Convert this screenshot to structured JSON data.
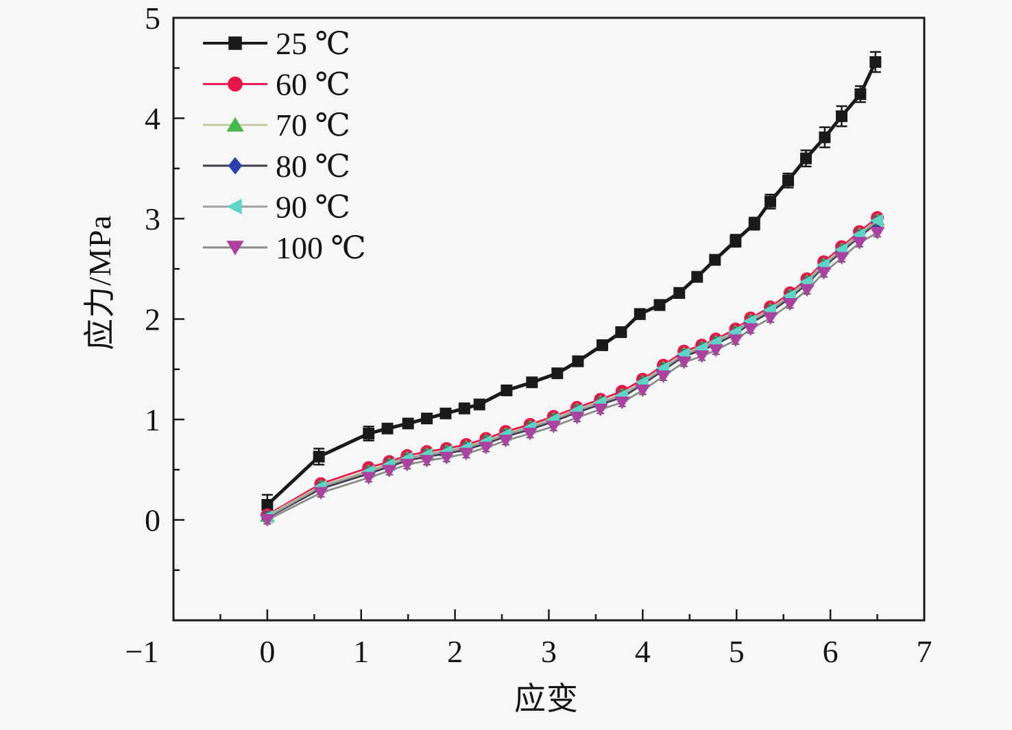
{
  "figure": {
    "background": "#f7f7f7",
    "frame_color": "#1a1a1a",
    "tick_label_color": "#141414"
  },
  "chart_data": {
    "type": "line",
    "title": "",
    "xlabel": "应变",
    "ylabel": "应力/MPa",
    "xlim": [
      -1,
      7
    ],
    "ylim": [
      -1,
      5
    ],
    "x_major_ticks": [
      -1,
      0,
      1,
      2,
      3,
      4,
      5,
      6,
      7
    ],
    "x_minor_step": 0.5,
    "y_major_ticks": [
      0,
      1,
      2,
      3,
      4,
      5
    ],
    "y_minor_step": 0.5,
    "grid": false,
    "legend_position": "top-left",
    "error_bars": true,
    "shared_x": [
      0,
      0.57,
      1.08,
      1.3,
      1.49,
      1.7,
      1.91,
      2.12,
      2.33,
      2.54,
      2.8,
      3.05,
      3.3,
      3.55,
      3.78,
      4.0,
      4.22,
      4.44,
      4.63,
      4.78,
      4.99,
      5.15,
      5.36,
      5.57,
      5.75,
      5.93,
      6.12,
      6.31,
      6.5
    ],
    "series": [
      {
        "name": "25c",
        "label": "25 ℃",
        "marker": "square",
        "marker_color": "#1a1a1a",
        "line_color": "#1a1a1a",
        "err_color": "#1a1a1a",
        "line_width": 5,
        "points": [
          [
            0,
            0.15,
            0.1
          ],
          [
            0.55,
            0.63,
            0.08
          ],
          [
            1.08,
            0.86,
            0.07
          ],
          [
            1.28,
            0.91,
            0.04
          ],
          [
            1.5,
            0.96,
            0.04
          ],
          [
            1.7,
            1.01,
            0.04
          ],
          [
            1.9,
            1.06,
            0.04
          ],
          [
            2.1,
            1.11,
            0.05
          ],
          [
            2.26,
            1.15,
            0.05
          ],
          [
            2.55,
            1.29,
            0.05
          ],
          [
            2.82,
            1.37,
            0.04
          ],
          [
            3.09,
            1.46,
            0.04
          ],
          [
            3.31,
            1.58,
            0.05
          ],
          [
            3.57,
            1.74,
            0.05
          ],
          [
            3.77,
            1.87,
            0.05
          ],
          [
            3.97,
            2.05,
            0.05
          ],
          [
            4.18,
            2.14,
            0.05
          ],
          [
            4.39,
            2.26,
            0.05
          ],
          [
            4.58,
            2.42,
            0.05
          ],
          [
            4.77,
            2.59,
            0.05
          ],
          [
            4.99,
            2.78,
            0.06
          ],
          [
            5.19,
            2.95,
            0.06
          ],
          [
            5.36,
            3.17,
            0.07
          ],
          [
            5.55,
            3.38,
            0.07
          ],
          [
            5.74,
            3.6,
            0.08
          ],
          [
            5.94,
            3.81,
            0.1
          ],
          [
            6.12,
            4.02,
            0.1
          ],
          [
            6.32,
            4.24,
            0.08
          ],
          [
            6.48,
            4.56,
            0.1
          ]
        ]
      },
      {
        "name": "60c",
        "label": "60 ℃",
        "marker": "circle",
        "marker_color": "#e5174a",
        "line_color": "#e8174b",
        "err_color": "#5a5a5a",
        "line_width": 2.8,
        "err": 0.04,
        "values": [
          0.05,
          0.36,
          0.52,
          0.58,
          0.64,
          0.68,
          0.71,
          0.75,
          0.81,
          0.88,
          0.95,
          1.03,
          1.12,
          1.2,
          1.28,
          1.4,
          1.54,
          1.68,
          1.74,
          1.8,
          1.9,
          2.01,
          2.12,
          2.26,
          2.4,
          2.57,
          2.72,
          2.87,
          3.01
        ]
      },
      {
        "name": "70c",
        "label": "70 ℃",
        "marker": "triangle-up",
        "marker_color": "#47b84d",
        "line_color": "#c2cf9b",
        "err_color": "#5a5a5a",
        "line_width": 2.8,
        "err": 0.04,
        "values": [
          0.04,
          0.34,
          0.49,
          0.56,
          0.62,
          0.66,
          0.69,
          0.73,
          0.79,
          0.86,
          0.93,
          1.01,
          1.1,
          1.18,
          1.25,
          1.38,
          1.52,
          1.66,
          1.72,
          1.78,
          1.88,
          1.99,
          2.1,
          2.24,
          2.38,
          2.55,
          2.7,
          2.85,
          2.99
        ]
      },
      {
        "name": "80c",
        "label": "80 ℃",
        "marker": "diamond",
        "marker_color": "#2b3fad",
        "line_color": "#3c3f4e",
        "err_color": "#5a5a5a",
        "line_width": 2.8,
        "err": 0.04,
        "values": [
          0.02,
          0.31,
          0.46,
          0.53,
          0.59,
          0.63,
          0.66,
          0.7,
          0.76,
          0.83,
          0.9,
          0.98,
          1.07,
          1.15,
          1.22,
          1.35,
          1.49,
          1.63,
          1.69,
          1.75,
          1.85,
          1.96,
          2.07,
          2.21,
          2.35,
          2.52,
          2.67,
          2.82,
          2.96
        ]
      },
      {
        "name": "90c",
        "label": "90 ℃",
        "marker": "triangle-left",
        "marker_color": "#5fd3c5",
        "line_color": "#a0a0a0",
        "err_color": "#5a5a5a",
        "line_width": 2.8,
        "err": 0.04,
        "values": [
          0.03,
          0.33,
          0.48,
          0.55,
          0.61,
          0.65,
          0.68,
          0.72,
          0.78,
          0.85,
          0.92,
          1.0,
          1.09,
          1.17,
          1.24,
          1.37,
          1.51,
          1.65,
          1.71,
          1.77,
          1.87,
          1.98,
          2.09,
          2.23,
          2.37,
          2.54,
          2.69,
          2.84,
          2.98
        ]
      },
      {
        "name": "100c",
        "label": "100 ℃",
        "marker": "triangle-down",
        "marker_color": "#ab429f",
        "line_color": "#8a8a8a",
        "err_color": "#5a5a5a",
        "line_width": 2.8,
        "err": 0.04,
        "values": [
          0.0,
          0.27,
          0.42,
          0.49,
          0.55,
          0.59,
          0.62,
          0.66,
          0.72,
          0.79,
          0.86,
          0.93,
          1.02,
          1.1,
          1.17,
          1.29,
          1.43,
          1.57,
          1.63,
          1.69,
          1.79,
          1.9,
          2.01,
          2.15,
          2.29,
          2.46,
          2.61,
          2.76,
          2.86
        ]
      }
    ]
  }
}
